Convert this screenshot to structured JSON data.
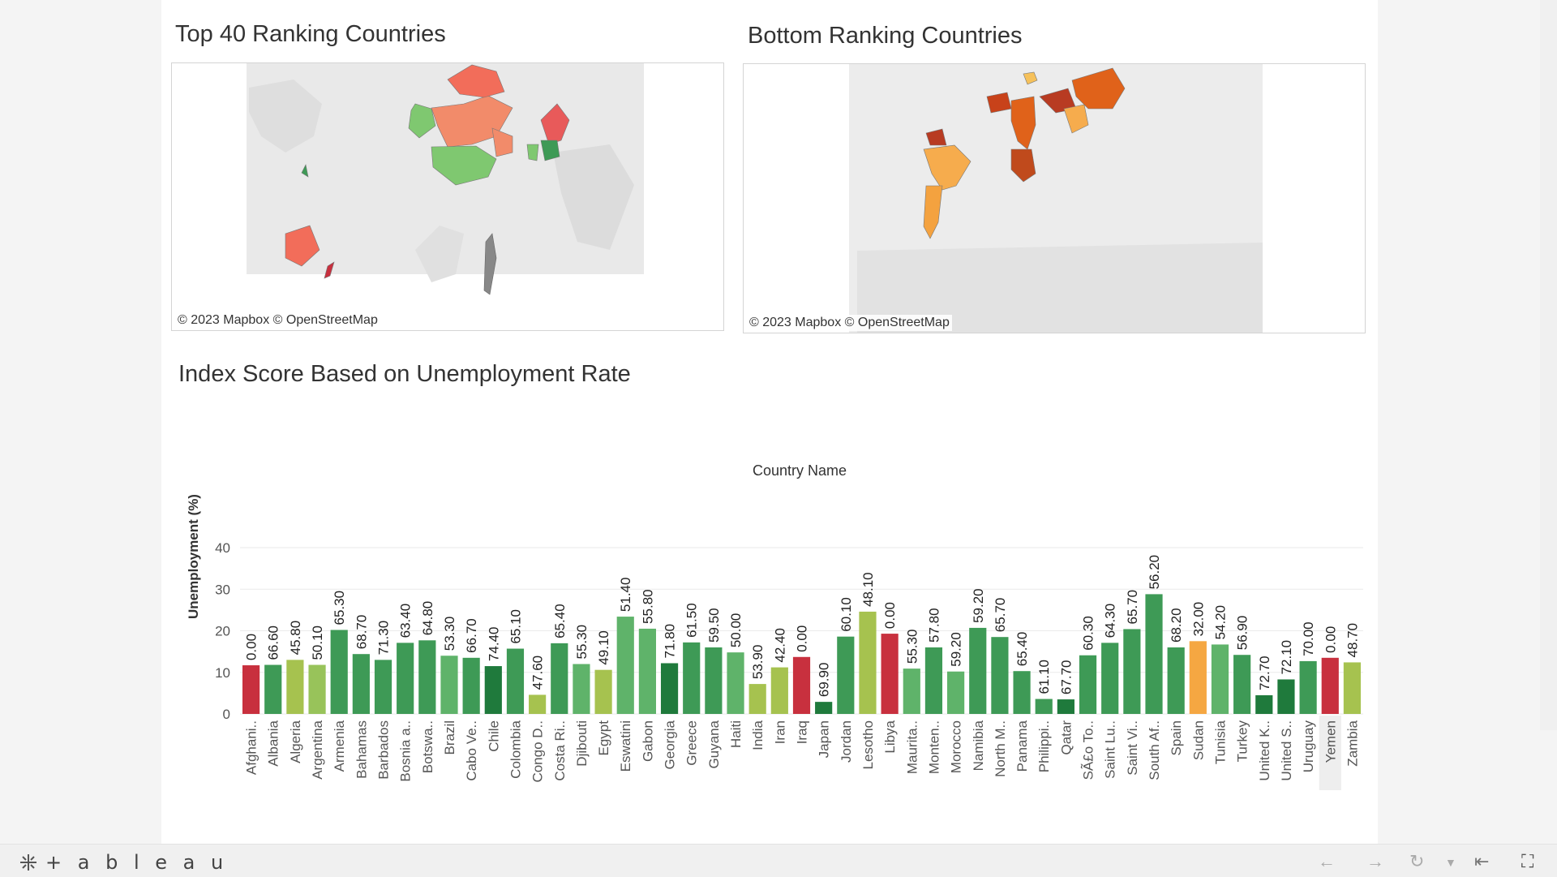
{
  "dashboard": {
    "top_title": "Top 40 Ranking Countries",
    "bottom_title": "Bottom Ranking Countries",
    "chart_title": "Index Score Based on Unemployment Rate",
    "map_credit_mapbox": "© 2023 Mapbox",
    "map_credit_osm": "© OpenStreetMap"
  },
  "footer": {
    "logo_text": "+ a b l e a u",
    "back_icon": "arrow-left-icon",
    "forward_icon": "arrow-right-icon",
    "revert_icon": "revert-icon",
    "first_icon": "skip-to-start-icon",
    "fullscreen_icon": "fullscreen-icon"
  },
  "colors": {
    "darkgreen": "#1f7a3c",
    "green": "#3e9a56",
    "medgreen": "#5fb36a",
    "lightgreen": "#98c35a",
    "yellowgreen": "#a6c24f",
    "red": "#c8303e",
    "orange": "#f5a742",
    "salmon": "#f28b6a",
    "map_orange": "#e0621a",
    "map_light_orange": "#f6ac4d"
  },
  "chart_data": {
    "type": "bar",
    "header": "Country Name",
    "ylabel": "Unemployment (%)",
    "ylim": [
      0,
      40
    ],
    "yticks": [
      0,
      10,
      20,
      30,
      40
    ],
    "grid": true,
    "categories": [
      "Afghani..",
      "Albania",
      "Algeria",
      "Argentina",
      "Armenia",
      "Bahamas",
      "Barbados",
      "Bosnia a..",
      "Botswa..",
      "Brazil",
      "Cabo Ve..",
      "Chile",
      "Colombia",
      "Congo D..",
      "Costa Ri..",
      "Djibouti",
      "Egypt",
      "Eswatini",
      "Gabon",
      "Georgia",
      "Greece",
      "Guyana",
      "Haiti",
      "India",
      "Iran",
      "Iraq",
      "Japan",
      "Jordan",
      "Lesotho",
      "Libya",
      "Maurita..",
      "Monten..",
      "Morocco",
      "Namibia",
      "North M..",
      "Panama",
      "Philippi..",
      "Qatar",
      "SÃ£o To..",
      "Saint Lu..",
      "Saint Vi..",
      "South Af..",
      "Spain",
      "Sudan",
      "Tunisia",
      "Turkey",
      "United K..",
      "United S..",
      "Uruguay",
      "Yemen",
      "Zambia"
    ],
    "values": [
      11.7,
      11.8,
      13.0,
      11.8,
      20.2,
      14.4,
      13.0,
      17.1,
      17.7,
      14.0,
      13.5,
      11.5,
      15.7,
      4.6,
      17.0,
      12.0,
      10.6,
      23.4,
      20.5,
      12.2,
      17.2,
      16.0,
      14.8,
      7.2,
      11.2,
      13.7,
      2.9,
      18.6,
      24.6,
      19.3,
      10.9,
      16.0,
      10.2,
      20.7,
      18.5,
      10.3,
      3.6,
      3.5,
      14.1,
      17.1,
      20.4,
      28.8,
      16.0,
      17.5,
      16.7,
      14.2,
      4.5,
      8.3,
      12.7,
      13.5,
      12.4
    ],
    "labels": [
      "0.00",
      "66.60",
      "45.80",
      "50.10",
      "65.30",
      "68.70",
      "71.30",
      "63.40",
      "64.80",
      "53.30",
      "66.70",
      "74.40",
      "65.10",
      "47.60",
      "65.40",
      "55.30",
      "49.10",
      "51.40",
      "55.80",
      "71.80",
      "61.50",
      "59.50",
      "50.00",
      "53.90",
      "42.40",
      "0.00",
      "69.90",
      "60.10",
      "48.10",
      "0.00",
      "55.30",
      "57.80",
      "59.20",
      "59.20",
      "65.70",
      "65.40",
      "61.10",
      "67.70",
      "60.30",
      "64.30",
      "65.70",
      "56.20",
      "68.20",
      "32.00",
      "54.20",
      "56.90",
      "72.70",
      "72.10",
      "70.00",
      "0.00",
      "48.70"
    ],
    "colors": [
      "red",
      "green",
      "yellowgreen",
      "lightgreen",
      "green",
      "green",
      "green",
      "green",
      "green",
      "medgreen",
      "green",
      "darkgreen",
      "green",
      "yellowgreen",
      "green",
      "medgreen",
      "yellowgreen",
      "medgreen",
      "medgreen",
      "darkgreen",
      "green",
      "green",
      "medgreen",
      "yellowgreen",
      "yellowgreen",
      "red",
      "darkgreen",
      "green",
      "yellowgreen",
      "red",
      "medgreen",
      "green",
      "medgreen",
      "green",
      "green",
      "green",
      "green",
      "darkgreen",
      "green",
      "green",
      "green",
      "green",
      "green",
      "orange",
      "medgreen",
      "green",
      "darkgreen",
      "darkgreen",
      "green",
      "red",
      "yellowgreen"
    ],
    "highlighted": "Yemen"
  }
}
